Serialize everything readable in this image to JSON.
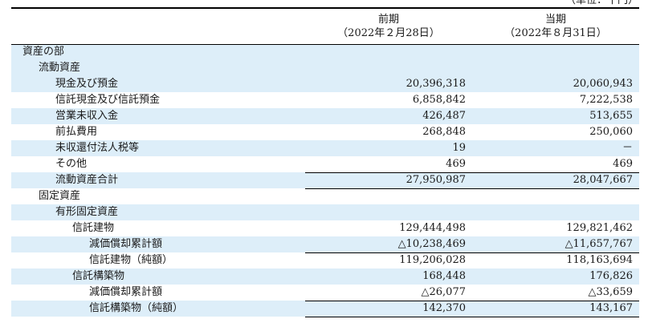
{
  "unit_note": "（単位：千円）",
  "header": {
    "label": "",
    "prev": {
      "title": "前期",
      "date": "（2022年２月28日）"
    },
    "curr": {
      "title": "当期",
      "date": "（2022年８月31日）"
    }
  },
  "rows": [
    {
      "label": "資産の部",
      "prev": "",
      "curr": ""
    },
    {
      "label": "流動資産",
      "prev": "",
      "curr": ""
    },
    {
      "label": "現金及び預金",
      "prev": "20,396,318",
      "curr": "20,060,943"
    },
    {
      "label": "信託現金及び信託預金",
      "prev": "6,858,842",
      "curr": "7,222,538"
    },
    {
      "label": "営業未収入金",
      "prev": "426,487",
      "curr": "513,655"
    },
    {
      "label": "前払費用",
      "prev": "268,848",
      "curr": "250,060"
    },
    {
      "label": "未収還付法人税等",
      "prev": "19",
      "curr": "－"
    },
    {
      "label": "その他",
      "prev": "469",
      "curr": "469"
    },
    {
      "label": "流動資産合計",
      "prev": "27,950,987",
      "curr": "28,047,667"
    },
    {
      "label": "固定資産",
      "prev": "",
      "curr": ""
    },
    {
      "label": "有形固定資産",
      "prev": "",
      "curr": ""
    },
    {
      "label": "信託建物",
      "prev": "129,444,498",
      "curr": "129,821,462"
    },
    {
      "label": "減価償却累計額",
      "prev": "△10,238,469",
      "curr": "△11,657,767"
    },
    {
      "label": "信託建物（純額）",
      "prev": "119,206,028",
      "curr": "118,163,694"
    },
    {
      "label": "信託構築物",
      "prev": "168,448",
      "curr": "176,826"
    },
    {
      "label": "減価償却累計額",
      "prev": "△26,077",
      "curr": "△33,659"
    },
    {
      "label": "信託構築物（純額）",
      "prev": "142,370",
      "curr": "143,167"
    }
  ]
}
